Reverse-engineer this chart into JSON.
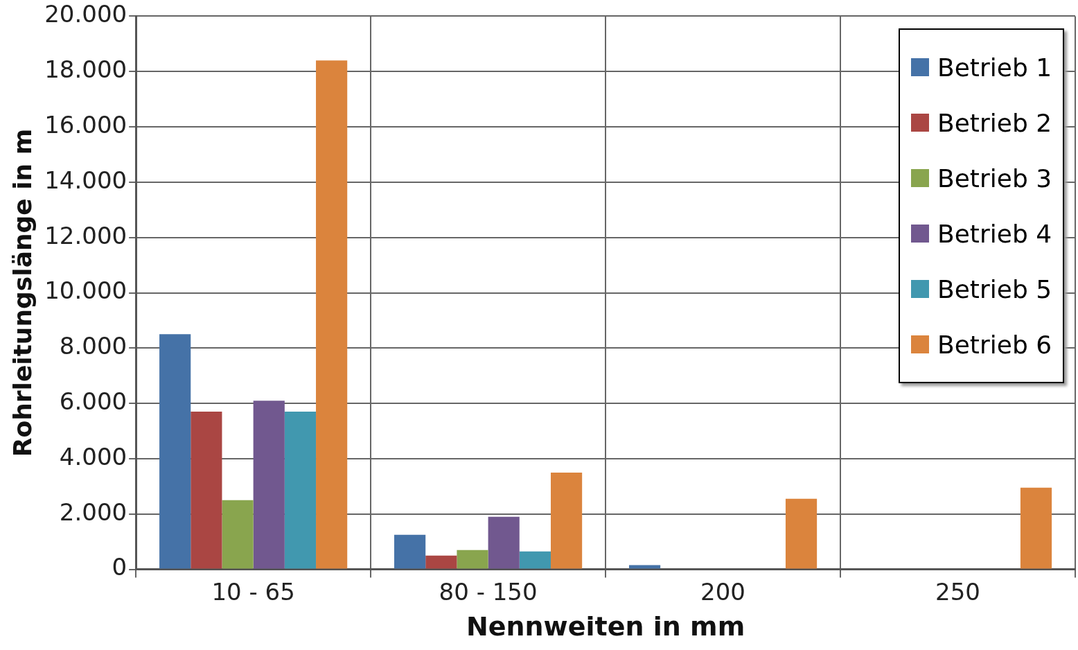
{
  "chart_data": {
    "type": "bar",
    "xlabel": "Nennweiten in mm",
    "ylabel": "Rohrleitungslänge in m",
    "categories": [
      "10 - 65",
      "80 - 150",
      "200",
      "250"
    ],
    "series": [
      {
        "name": "Betrieb 1",
        "color": "#4572a7",
        "values": [
          8500,
          1250,
          150,
          0
        ]
      },
      {
        "name": "Betrieb 2",
        "color": "#aa4643",
        "values": [
          5700,
          500,
          0,
          0
        ]
      },
      {
        "name": "Betrieb 3",
        "color": "#89a54e",
        "values": [
          2500,
          700,
          0,
          0
        ]
      },
      {
        "name": "Betrieb 4",
        "color": "#71588f",
        "values": [
          6100,
          1900,
          0,
          0
        ]
      },
      {
        "name": "Betrieb 5",
        "color": "#4198af",
        "values": [
          5700,
          650,
          0,
          0
        ]
      },
      {
        "name": "Betrieb 6",
        "color": "#db843d",
        "values": [
          18400,
          3500,
          2550,
          2950
        ]
      }
    ],
    "ylim": [
      0,
      20000
    ],
    "yticks": [
      {
        "value": 0,
        "label": "0"
      },
      {
        "value": 2000,
        "label": "2.000"
      },
      {
        "value": 4000,
        "label": "4.000"
      },
      {
        "value": 6000,
        "label": "6.000"
      },
      {
        "value": 8000,
        "label": "8.000"
      },
      {
        "value": 10000,
        "label": "10.000"
      },
      {
        "value": 12000,
        "label": "12.000"
      },
      {
        "value": 14000,
        "label": "14.000"
      },
      {
        "value": 16000,
        "label": "16.000"
      },
      {
        "value": 18000,
        "label": "18.000"
      },
      {
        "value": 20000,
        "label": "20.000"
      }
    ],
    "grid": true,
    "legend": "top right"
  }
}
